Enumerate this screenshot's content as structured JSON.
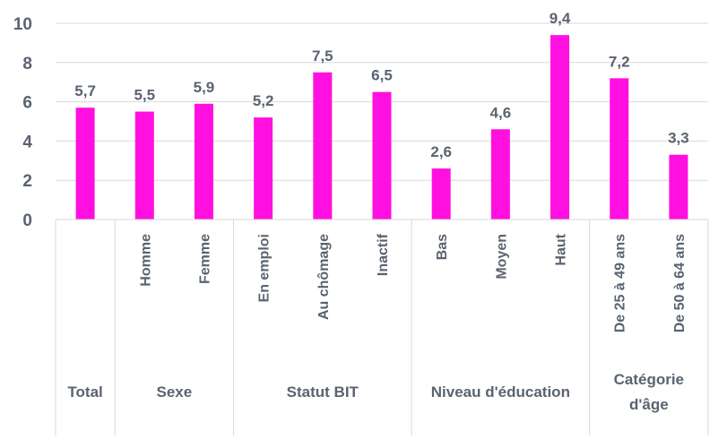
{
  "chart_data": {
    "type": "bar",
    "ylim": [
      0,
      10
    ],
    "yticks": [
      "0",
      "2",
      "4",
      "6",
      "8",
      "10"
    ],
    "grid": true,
    "bar_color": "#ff10e0",
    "grid_color": "#d9d9d9",
    "categories": [
      "",
      "Homme",
      "Femme",
      "En emploi",
      "Au chômage",
      "Inactif",
      "Bas",
      "Moyen",
      "Haut",
      "De 25 à 49 ans",
      "De 50 à 64 ans"
    ],
    "values": [
      5.7,
      5.5,
      5.9,
      5.2,
      7.5,
      6.5,
      2.6,
      4.6,
      9.4,
      7.2,
      3.3
    ],
    "data_labels": [
      "5,7",
      "5,5",
      "5,9",
      "5,2",
      "7,5",
      "6,5",
      "2,6",
      "4,6",
      "9,4",
      "7,2",
      "3,3"
    ],
    "groups": [
      {
        "label": [
          "Total"
        ],
        "count": 1
      },
      {
        "label": [
          "Sexe"
        ],
        "count": 2
      },
      {
        "label": [
          "Statut BIT"
        ],
        "count": 3
      },
      {
        "label": [
          "Niveau d'éducation"
        ],
        "count": 3
      },
      {
        "label": [
          "Catégorie",
          "d'âge"
        ],
        "count": 2
      }
    ]
  }
}
